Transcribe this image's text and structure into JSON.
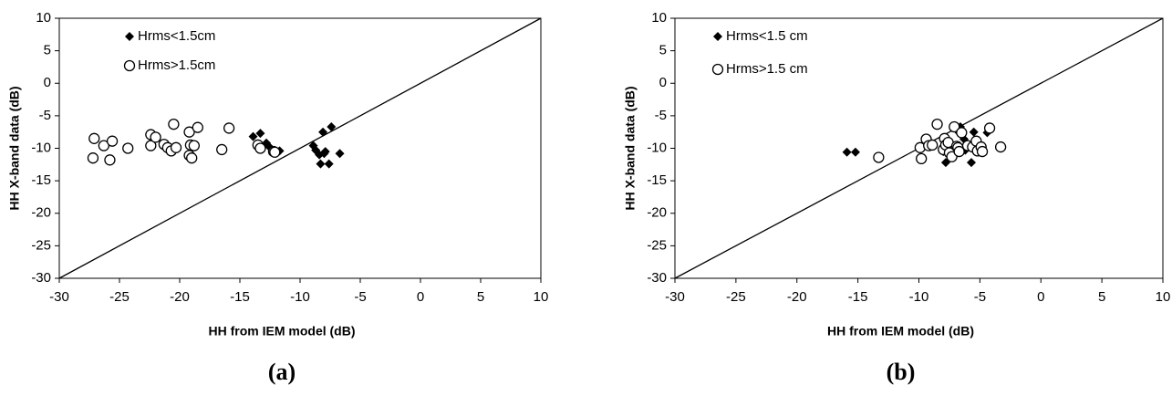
{
  "chart_data": [
    {
      "type": "scatter",
      "caption": "(a)",
      "xlabel": "HH from IEM model (dB)",
      "ylabel": "HH X-band data (dB)",
      "xlim": [
        -30,
        10
      ],
      "ylim": [
        -30,
        10
      ],
      "xticks": [
        -30,
        -25,
        -20,
        -15,
        -10,
        -5,
        0,
        5,
        10
      ],
      "yticks": [
        -30,
        -25,
        -20,
        -15,
        -10,
        -5,
        0,
        5,
        10
      ],
      "series": [
        {
          "name": "Hrms<1.5cm",
          "marker": "diamond",
          "color": "#000000",
          "x": [
            -13.9,
            -13.3,
            -13.5,
            -12.8,
            -12.6,
            -11.7,
            -8.9,
            -8.7,
            -8.4,
            -8.1,
            -7.9,
            -7.4,
            -8.3,
            -7.6,
            -6.7,
            -8.0
          ],
          "values": [
            -8.2,
            -7.7,
            -10.0,
            -9.2,
            -9.7,
            -10.4,
            -9.6,
            -10.3,
            -11.0,
            -7.5,
            -10.5,
            -6.7,
            -12.4,
            -12.4,
            -10.8,
            -10.8
          ]
        },
        {
          "name": "Hrms>1.5cm",
          "marker": "circle",
          "color": "#000000",
          "x": [
            -27.1,
            -27.2,
            -26.3,
            -25.8,
            -25.6,
            -24.3,
            -22.4,
            -22.4,
            -22.0,
            -21.3,
            -21.0,
            -20.7,
            -20.5,
            -20.3,
            -19.2,
            -19.1,
            -19.2,
            -19.0,
            -18.8,
            -18.5,
            -16.5,
            -15.9,
            -13.5,
            -13.3,
            -12.2,
            -12.1
          ],
          "values": [
            -8.5,
            -11.5,
            -9.6,
            -11.8,
            -8.9,
            -10.0,
            -7.9,
            -9.6,
            -8.3,
            -9.4,
            -9.9,
            -10.4,
            -6.3,
            -9.9,
            -7.5,
            -9.5,
            -11.1,
            -11.5,
            -9.6,
            -6.8,
            -10.2,
            -6.9,
            -9.5,
            -10.0,
            -10.5,
            -10.6
          ]
        }
      ]
    },
    {
      "type": "scatter",
      "caption": "(b)",
      "xlabel": "HH from IEM model (dB)",
      "ylabel": "HH X-band data (dB)",
      "xlim": [
        -30,
        10
      ],
      "ylim": [
        -30,
        10
      ],
      "xticks": [
        -30,
        -25,
        -20,
        -15,
        -10,
        -5,
        0,
        5,
        10
      ],
      "yticks": [
        -30,
        -25,
        -20,
        -15,
        -10,
        -5,
        0,
        5,
        10
      ],
      "series": [
        {
          "name": "Hrms<1.5 cm",
          "marker": "diamond",
          "color": "#000000",
          "x": [
            -15.9,
            -15.2,
            -8.0,
            -7.8,
            -7.5,
            -7.0,
            -6.7,
            -6.6,
            -6.2,
            -5.8,
            -5.7,
            -5.5,
            -5.4,
            -5.1,
            -5.0,
            -4.4,
            -6.3
          ],
          "values": [
            -10.6,
            -10.6,
            -10.5,
            -12.2,
            -11.0,
            -9.6,
            -7.6,
            -6.7,
            -10.3,
            -9.5,
            -12.2,
            -7.5,
            -9.8,
            -10.2,
            -9.5,
            -7.6,
            -8.6
          ]
        },
        {
          "name": "Hrms>1.5 cm",
          "marker": "circle",
          "color": "#000000",
          "x": [
            -13.3,
            -9.9,
            -9.8,
            -9.4,
            -9.2,
            -8.9,
            -8.5,
            -8.0,
            -7.9,
            -7.8,
            -7.6,
            -7.5,
            -7.3,
            -7.1,
            -6.9,
            -6.8,
            -6.7,
            -6.5,
            -6.0,
            -5.6,
            -5.3,
            -5.2,
            -4.9,
            -4.8,
            -4.2,
            -3.3
          ],
          "values": [
            -11.4,
            -9.9,
            -11.6,
            -8.6,
            -9.6,
            -9.5,
            -6.3,
            -10.2,
            -8.5,
            -9.5,
            -9.1,
            -10.7,
            -11.3,
            -6.7,
            -9.7,
            -9.9,
            -10.5,
            -7.6,
            -9.6,
            -9.8,
            -8.9,
            -10.4,
            -9.8,
            -10.5,
            -6.9,
            -9.8
          ]
        }
      ]
    }
  ]
}
